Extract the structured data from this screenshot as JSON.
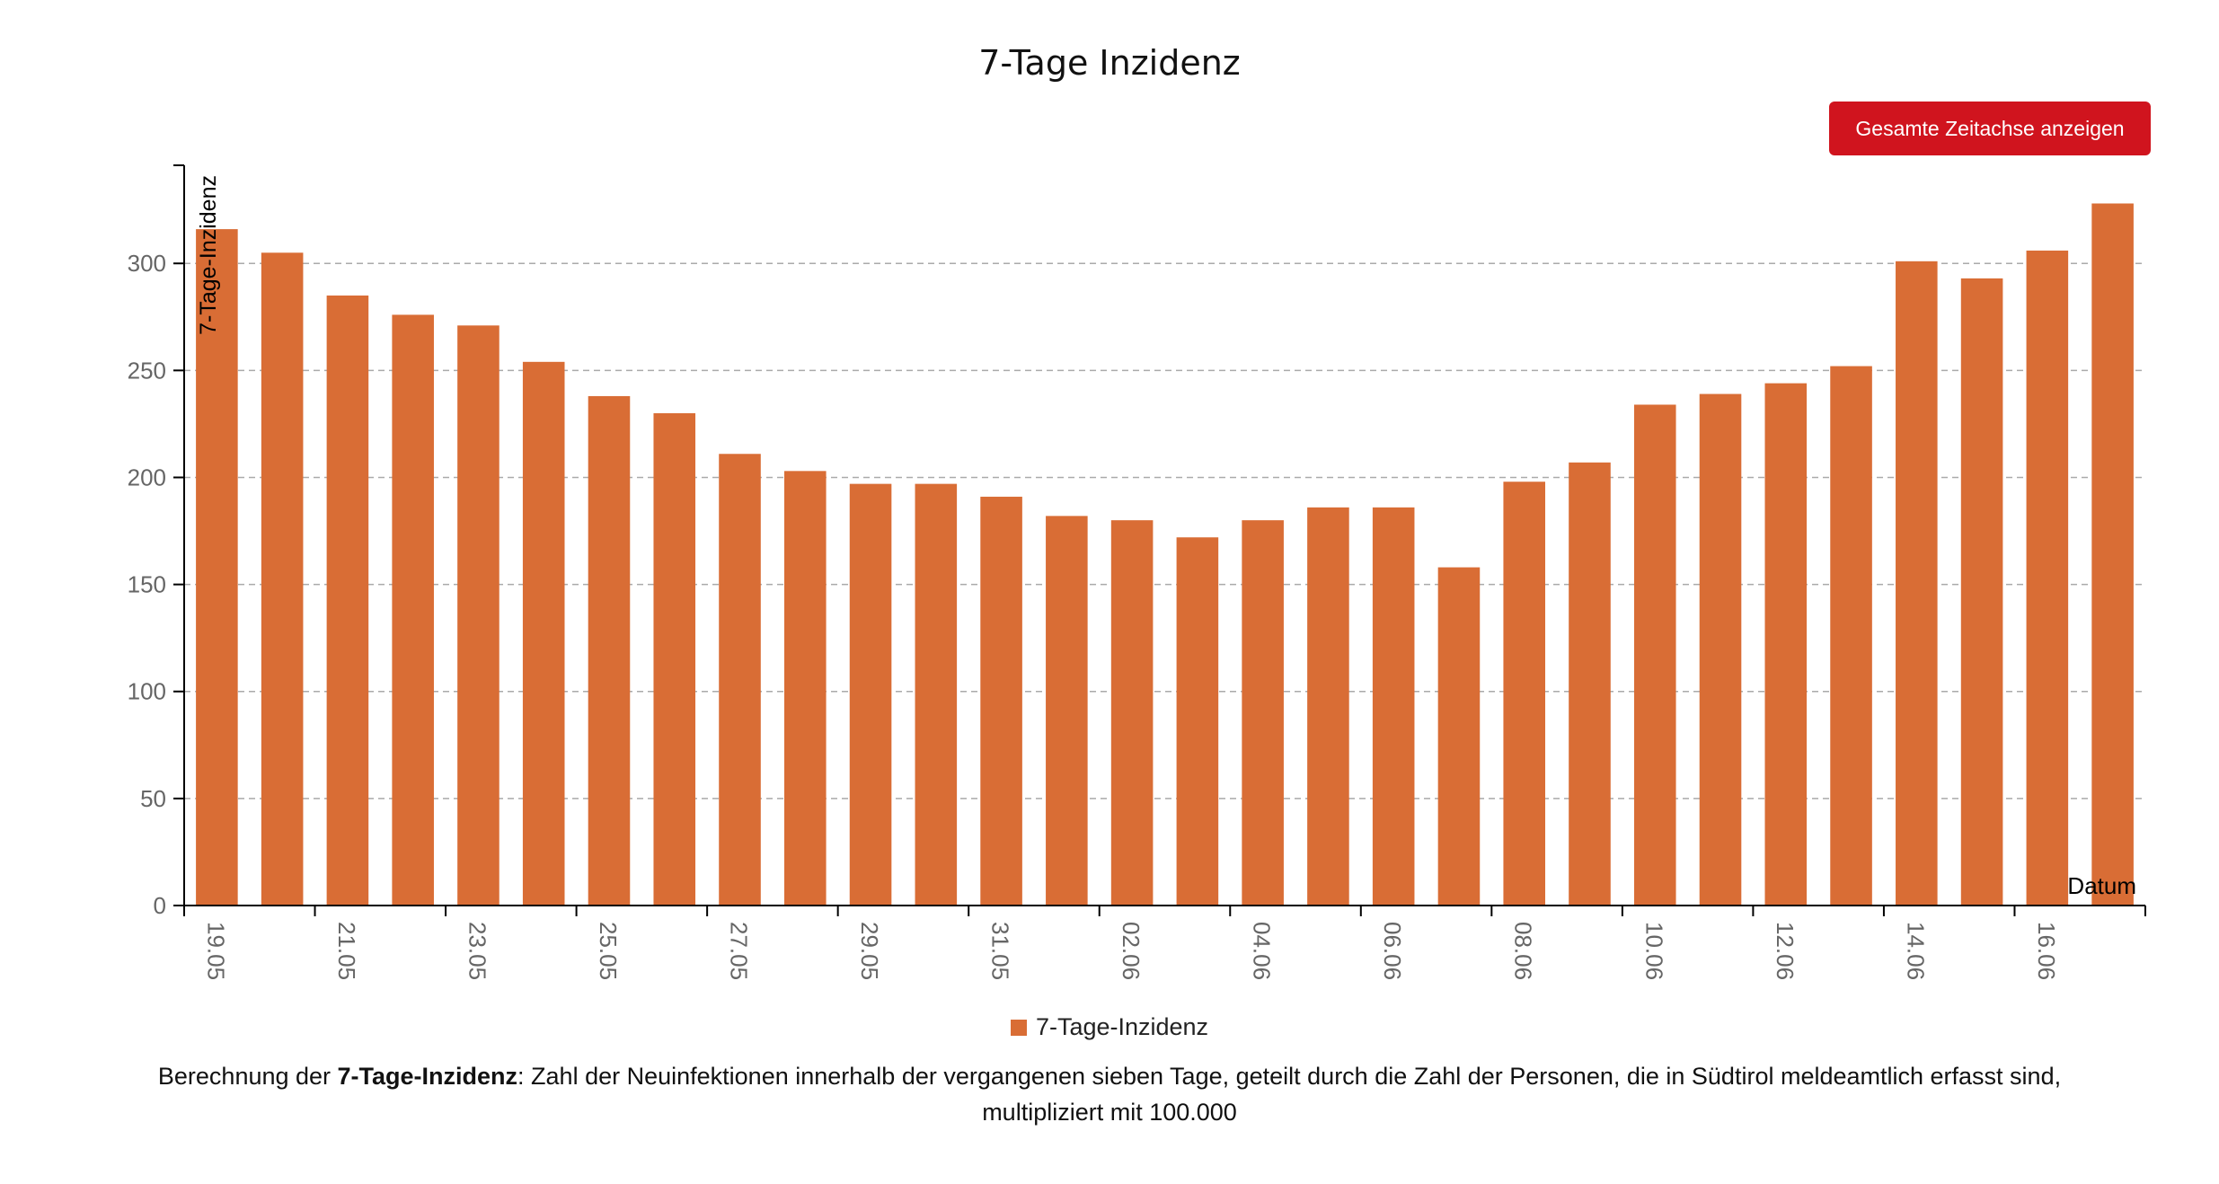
{
  "title": "7-Tage Inzidenz",
  "button_label": "Gesamte Zeitachse anzeigen",
  "legend_label": "7-Tage-Inzidenz",
  "description": {
    "prefix": "Berechnung der ",
    "term": "7-Tage-Inzidenz",
    "text": ": Zahl der Neuinfektionen innerhalb der vergangenen sieben Tage, geteilt durch die Zahl der Personen, die in Südtirol meldeamtlich erfasst sind, multipliziert mit 100.000"
  },
  "colors": {
    "bar": "#d96d35",
    "button": "#d0141e",
    "grid": "#aaaaaa",
    "tick": "#666666"
  },
  "chart_data": {
    "type": "bar",
    "title": "7-Tage Inzidenz",
    "xlabel": "Datum",
    "ylabel": "7-Tage-Inzidenz",
    "ylim": [
      0,
      345
    ],
    "yticks": [
      0,
      50,
      100,
      150,
      200,
      250,
      300
    ],
    "grid": true,
    "legend_position": "bottom",
    "categories": [
      "19.05",
      "20.05",
      "21.05",
      "22.05",
      "23.05",
      "24.05",
      "25.05",
      "26.05",
      "27.05",
      "28.05",
      "29.05",
      "30.05",
      "31.05",
      "01.06",
      "02.06",
      "03.06",
      "04.06",
      "05.06",
      "06.06",
      "07.06",
      "08.06",
      "09.06",
      "10.06",
      "11.06",
      "12.06",
      "13.06",
      "14.06",
      "15.06",
      "16.06",
      "17.06"
    ],
    "x_tick_labels": [
      "19.05",
      "",
      "21.05",
      "",
      "23.05",
      "",
      "25.05",
      "",
      "27.05",
      "",
      "29.05",
      "",
      "31.05",
      "",
      "02.06",
      "",
      "04.06",
      "",
      "06.06",
      "",
      "08.06",
      "",
      "10.06",
      "",
      "12.06",
      "",
      "14.06",
      "",
      "16.06",
      ""
    ],
    "series": [
      {
        "name": "7-Tage-Inzidenz",
        "values": [
          316,
          305,
          285,
          276,
          271,
          254,
          238,
          230,
          211,
          203,
          197,
          197,
          191,
          182,
          180,
          172,
          180,
          186,
          186,
          158,
          198,
          207,
          234,
          239,
          244,
          252,
          301,
          293,
          306,
          328
        ]
      }
    ]
  }
}
